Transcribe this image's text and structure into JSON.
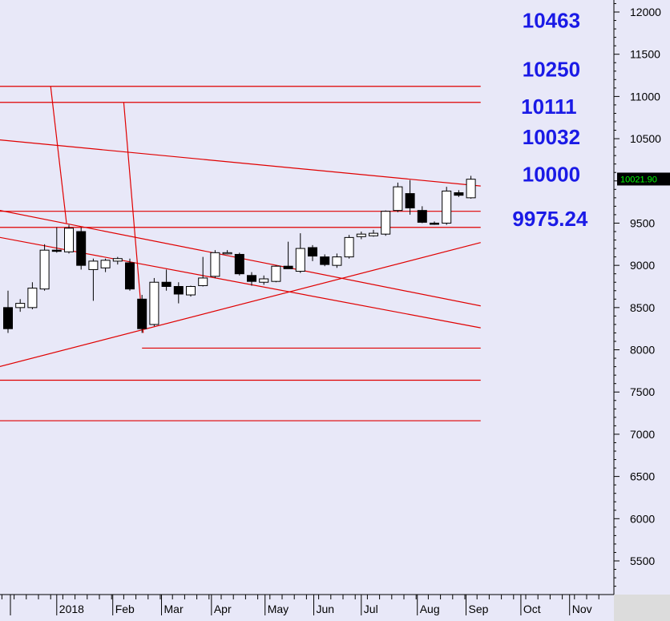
{
  "chart_data": {
    "type": "candlestick",
    "ylim": [
      5000,
      12100
    ],
    "y_ticks": [
      5500,
      6000,
      6500,
      7000,
      7500,
      8000,
      8500,
      9000,
      9500,
      10000,
      10500,
      11000,
      11500,
      12000
    ],
    "y_tick_labels": [
      "5500",
      "6000",
      "6500",
      "7000",
      "7500",
      "8000",
      "8500",
      "9000",
      "9500",
      "10000",
      "10500",
      "11000",
      "11500",
      "12000"
    ],
    "x_ticks": [
      {
        "label": "2018",
        "week": 4
      },
      {
        "label": "Feb",
        "week": 8.6
      },
      {
        "label": "Mar",
        "week": 12.6
      },
      {
        "label": "Apr",
        "week": 16.7
      },
      {
        "label": "May",
        "week": 21.1
      },
      {
        "label": "Jun",
        "week": 25.1
      },
      {
        "label": "Jul",
        "week": 29
      },
      {
        "label": "Aug",
        "week": 33.6
      },
      {
        "label": "Sep",
        "week": 37.6
      },
      {
        "label": "Oct",
        "week": 42.1
      },
      {
        "label": "Nov",
        "week": 46.1
      }
    ],
    "last_price_label": "10021.90",
    "last_price": 10021.9,
    "candles": [
      {
        "w": 0,
        "o": 8500,
        "h": 8700,
        "l": 8200,
        "c": 8250
      },
      {
        "w": 1,
        "o": 8500,
        "h": 8600,
        "l": 8450,
        "c": 8550
      },
      {
        "w": 2,
        "o": 8500,
        "h": 8800,
        "l": 8480,
        "c": 8730
      },
      {
        "w": 3,
        "o": 8720,
        "h": 9250,
        "l": 8700,
        "c": 9180
      },
      {
        "w": 4,
        "o": 9180,
        "h": 9450,
        "l": 9150,
        "c": 9170
      },
      {
        "w": 5,
        "o": 9160,
        "h": 9480,
        "l": 9140,
        "c": 9440
      },
      {
        "w": 6,
        "o": 9400,
        "h": 9450,
        "l": 8950,
        "c": 9000
      },
      {
        "w": 7,
        "o": 8950,
        "h": 9080,
        "l": 8580,
        "c": 9050
      },
      {
        "w": 8,
        "o": 8970,
        "h": 9080,
        "l": 8920,
        "c": 9060
      },
      {
        "w": 9,
        "o": 9050,
        "h": 9100,
        "l": 9010,
        "c": 9080
      },
      {
        "w": 10,
        "o": 9030,
        "h": 9080,
        "l": 8700,
        "c": 8720
      },
      {
        "w": 11,
        "o": 8600,
        "h": 8650,
        "l": 8200,
        "c": 8250
      },
      {
        "w": 12,
        "o": 8300,
        "h": 8850,
        "l": 8280,
        "c": 8800
      },
      {
        "w": 13,
        "o": 8800,
        "h": 8950,
        "l": 8700,
        "c": 8750
      },
      {
        "w": 14,
        "o": 8750,
        "h": 8800,
        "l": 8550,
        "c": 8660
      },
      {
        "w": 15,
        "o": 8650,
        "h": 8760,
        "l": 8630,
        "c": 8750
      },
      {
        "w": 16,
        "o": 8760,
        "h": 9100,
        "l": 8750,
        "c": 8850
      },
      {
        "w": 17,
        "o": 8870,
        "h": 9180,
        "l": 8850,
        "c": 9150
      },
      {
        "w": 18,
        "o": 9150,
        "h": 9180,
        "l": 9130,
        "c": 9150
      },
      {
        "w": 19,
        "o": 9130,
        "h": 9150,
        "l": 8880,
        "c": 8900
      },
      {
        "w": 20,
        "o": 8880,
        "h": 8920,
        "l": 8760,
        "c": 8810
      },
      {
        "w": 21,
        "o": 8800,
        "h": 8880,
        "l": 8770,
        "c": 8840
      },
      {
        "w": 22,
        "o": 8810,
        "h": 9000,
        "l": 8800,
        "c": 8990
      },
      {
        "w": 23,
        "o": 8990,
        "h": 9280,
        "l": 8980,
        "c": 8960
      },
      {
        "w": 24,
        "o": 8930,
        "h": 9380,
        "l": 8910,
        "c": 9200
      },
      {
        "w": 25,
        "o": 9210,
        "h": 9240,
        "l": 9050,
        "c": 9110
      },
      {
        "w": 26,
        "o": 9100,
        "h": 9130,
        "l": 8990,
        "c": 9010
      },
      {
        "w": 27,
        "o": 9000,
        "h": 9140,
        "l": 8970,
        "c": 9100
      },
      {
        "w": 28,
        "o": 9100,
        "h": 9360,
        "l": 9080,
        "c": 9330
      },
      {
        "w": 29,
        "o": 9340,
        "h": 9400,
        "l": 9310,
        "c": 9370
      },
      {
        "w": 30,
        "o": 9350,
        "h": 9420,
        "l": 9340,
        "c": 9380
      },
      {
        "w": 31,
        "o": 9370,
        "h": 9650,
        "l": 9350,
        "c": 9640
      },
      {
        "w": 32,
        "o": 9650,
        "h": 9980,
        "l": 9630,
        "c": 9930
      },
      {
        "w": 33,
        "o": 9850,
        "h": 10010,
        "l": 9600,
        "c": 9680
      },
      {
        "w": 34,
        "o": 9650,
        "h": 9700,
        "l": 9500,
        "c": 9510
      },
      {
        "w": 35,
        "o": 9500,
        "h": 9520,
        "l": 9480,
        "c": 9490
      },
      {
        "w": 36,
        "o": 9500,
        "h": 9930,
        "l": 9480,
        "c": 9880
      },
      {
        "w": 37,
        "o": 9860,
        "h": 9890,
        "l": 9810,
        "c": 9830
      },
      {
        "w": 38,
        "o": 9800,
        "h": 10060,
        "l": 9790,
        "c": 10020
      }
    ],
    "support_resistance_lines": [
      {
        "from": {
          "w": -1,
          "v": 11120
        },
        "to": {
          "w": 38.8,
          "v": 11120
        }
      },
      {
        "from": {
          "w": -1,
          "v": 10930
        },
        "to": {
          "w": 38.8,
          "v": 10930
        }
      },
      {
        "from": {
          "w": -1,
          "v": 9640
        },
        "to": {
          "w": 38.8,
          "v": 9640
        }
      },
      {
        "from": {
          "w": -1,
          "v": 9450
        },
        "to": {
          "w": 38.8,
          "v": 9450
        }
      },
      {
        "from": {
          "w": 11,
          "v": 8020
        },
        "to": {
          "w": 38.8,
          "v": 8020
        }
      },
      {
        "from": {
          "w": -1,
          "v": 7640
        },
        "to": {
          "w": 38.8,
          "v": 7640
        }
      },
      {
        "from": {
          "w": -1,
          "v": 7160
        },
        "to": {
          "w": 38.8,
          "v": 7160
        }
      },
      {
        "from": {
          "w": -1,
          "v": 10490
        },
        "to": {
          "w": 38.8,
          "v": 9940
        }
      },
      {
        "from": {
          "w": -1,
          "v": 9660
        },
        "to": {
          "w": 38.8,
          "v": 8520
        }
      },
      {
        "from": {
          "w": -1,
          "v": 9340
        },
        "to": {
          "w": 38.8,
          "v": 8260
        }
      },
      {
        "from": {
          "w": -1,
          "v": 7790
        },
        "to": {
          "w": 38.8,
          "v": 9270
        }
      },
      {
        "from": {
          "w": 3.5,
          "v": 11120
        },
        "to": {
          "w": 4.8,
          "v": 9500
        }
      },
      {
        "from": {
          "w": 9.5,
          "v": 10930
        },
        "to": {
          "w": 11.1,
          "v": 8200
        }
      }
    ],
    "annotations": [
      {
        "text": "10463",
        "v": 11900,
        "w": 44.6
      },
      {
        "text": "10250",
        "v": 11320,
        "w": 44.6
      },
      {
        "text": "10111",
        "v": 10880,
        "w": 44.4
      },
      {
        "text": "10032",
        "v": 10520,
        "w": 44.6
      },
      {
        "text": "10000",
        "v": 10080,
        "w": 44.6
      },
      {
        "text": "9975.24",
        "v": 9550,
        "w": 44.5
      }
    ]
  }
}
